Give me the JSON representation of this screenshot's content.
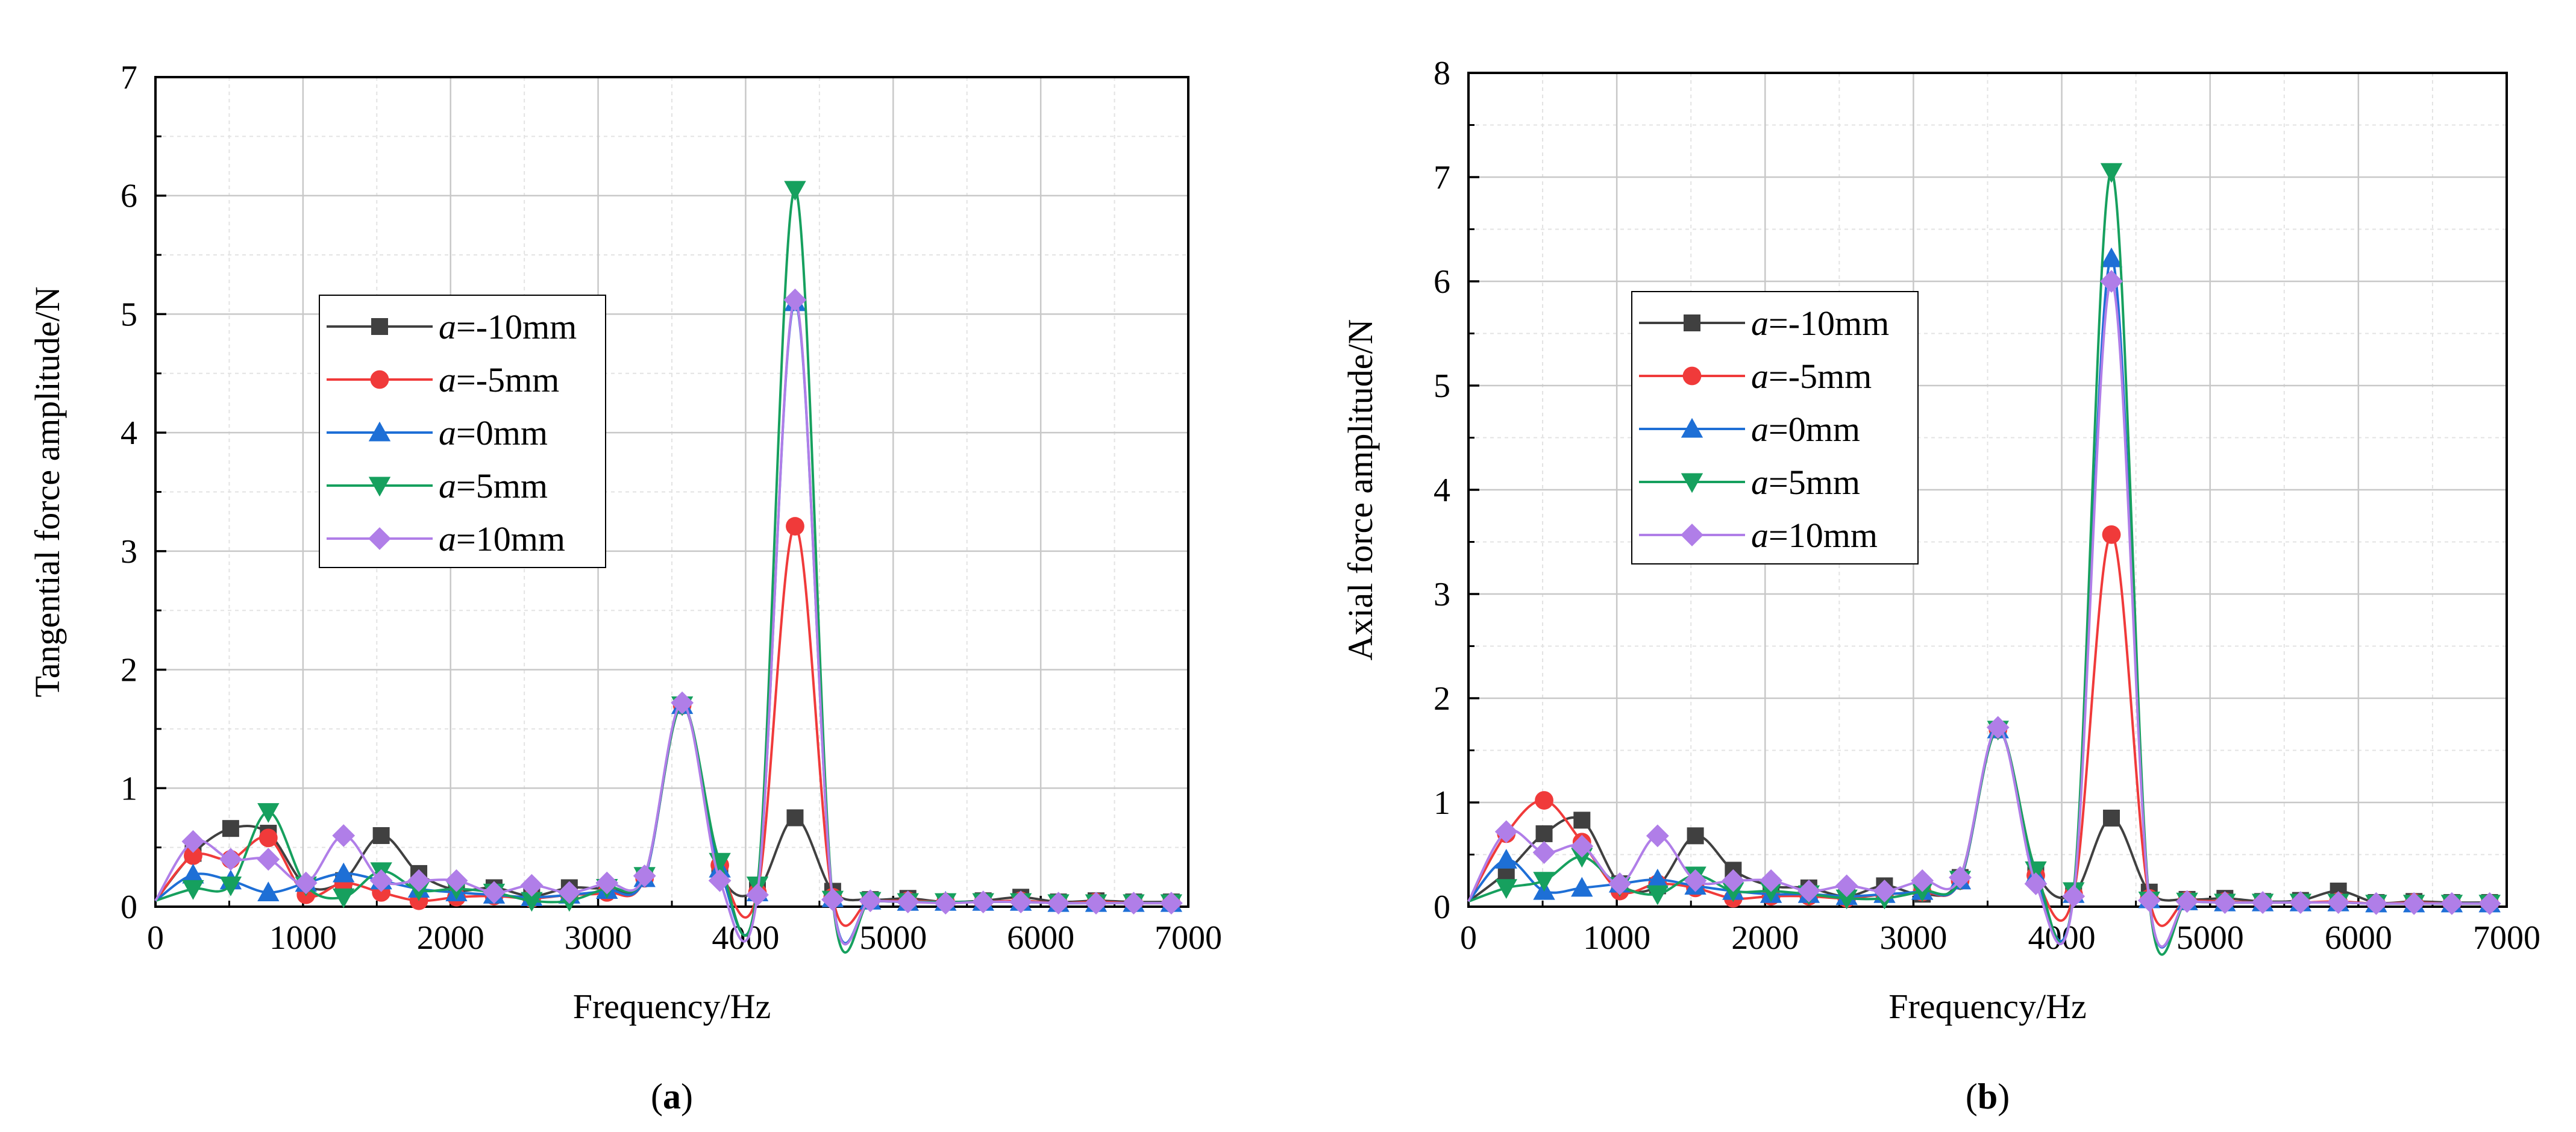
{
  "chart_data": [
    {
      "type": "line",
      "panel_label": "a",
      "xlabel": "Frequency/Hz",
      "ylabel": "Tangential force amplitude/N",
      "xlim": [
        0,
        7000
      ],
      "ylim": [
        0,
        7
      ],
      "xticks": [
        0,
        1000,
        2000,
        3000,
        4000,
        5000,
        6000,
        7000
      ],
      "yticks": [
        0,
        1,
        2,
        3,
        4,
        5,
        6,
        7
      ],
      "grid": true,
      "legend_position": "upper-left",
      "x": [
        0,
        255,
        510,
        765,
        1020,
        1275,
        1530,
        1785,
        2040,
        2295,
        2550,
        2805,
        3060,
        3315,
        3570,
        3825,
        4080,
        4335,
        4590,
        4845,
        5100,
        5355,
        5610,
        5865,
        6120,
        6375,
        6630,
        6885
      ],
      "series": [
        {
          "name_prefix": "a",
          "name_suffix": "=-10mm",
          "color": "#404040",
          "marker": "square",
          "values": [
            0.05,
            0.45,
            0.66,
            0.62,
            0.18,
            0.22,
            0.6,
            0.28,
            0.14,
            0.16,
            0.09,
            0.16,
            0.16,
            0.26,
            1.7,
            0.3,
            0.14,
            0.75,
            0.13,
            0.06,
            0.07,
            0.04,
            0.05,
            0.08,
            0.04,
            0.05,
            0.04,
            0.04
          ]
        },
        {
          "name_prefix": "a",
          "name_suffix": "=-5mm",
          "color": "#f03a3a",
          "marker": "circle",
          "values": [
            0.05,
            0.43,
            0.4,
            0.58,
            0.1,
            0.2,
            0.12,
            0.05,
            0.08,
            0.09,
            0.07,
            0.1,
            0.12,
            0.24,
            1.7,
            0.35,
            0.12,
            3.21,
            0.08,
            0.05,
            0.05,
            0.04,
            0.04,
            0.05,
            0.03,
            0.04,
            0.03,
            0.03
          ]
        },
        {
          "name_prefix": "a",
          "name_suffix": "=0mm",
          "color": "#1e6fd6",
          "marker": "triangle-up",
          "values": [
            0.05,
            0.27,
            0.22,
            0.12,
            0.2,
            0.28,
            0.22,
            0.15,
            0.12,
            0.1,
            0.08,
            0.1,
            0.14,
            0.24,
            1.7,
            0.32,
            0.12,
            5.1,
            0.07,
            0.05,
            0.04,
            0.04,
            0.04,
            0.04,
            0.03,
            0.03,
            0.03,
            0.03
          ]
        },
        {
          "name_prefix": "a",
          "name_suffix": "=5mm",
          "color": "#16a05e",
          "marker": "triangle-down",
          "values": [
            0.05,
            0.15,
            0.18,
            0.8,
            0.18,
            0.08,
            0.3,
            0.14,
            0.15,
            0.12,
            0.05,
            0.05,
            0.16,
            0.26,
            1.7,
            0.38,
            0.18,
            6.05,
            0.06,
            0.05,
            0.04,
            0.04,
            0.04,
            0.04,
            0.03,
            0.03,
            0.03,
            0.03
          ]
        },
        {
          "name_prefix": "a",
          "name_suffix": "=10mm",
          "color": "#b07ee8",
          "marker": "diamond",
          "values": [
            0.05,
            0.55,
            0.4,
            0.4,
            0.2,
            0.6,
            0.22,
            0.22,
            0.22,
            0.12,
            0.18,
            0.12,
            0.2,
            0.26,
            1.72,
            0.22,
            0.1,
            5.12,
            0.06,
            0.05,
            0.04,
            0.03,
            0.04,
            0.04,
            0.03,
            0.03,
            0.03,
            0.03
          ]
        }
      ]
    },
    {
      "type": "line",
      "panel_label": "b",
      "xlabel": "Frequency/Hz",
      "ylabel": "Axial force amplitude/N",
      "xlim": [
        0,
        7000
      ],
      "ylim": [
        0,
        8
      ],
      "xticks": [
        0,
        1000,
        2000,
        3000,
        4000,
        5000,
        6000,
        7000
      ],
      "yticks": [
        0,
        1,
        2,
        3,
        4,
        5,
        6,
        7,
        8
      ],
      "grid": true,
      "legend_position": "upper-left",
      "x": [
        0,
        255,
        510,
        765,
        1020,
        1275,
        1530,
        1785,
        2040,
        2295,
        2550,
        2805,
        3060,
        3315,
        3570,
        3825,
        4080,
        4335,
        4590,
        4845,
        5100,
        5355,
        5610,
        5865,
        6120,
        6375,
        6630,
        6885
      ],
      "series": [
        {
          "name_prefix": "a",
          "name_suffix": "=-10mm",
          "color": "#404040",
          "marker": "square",
          "values": [
            0.05,
            0.33,
            0.7,
            0.83,
            0.22,
            0.2,
            0.68,
            0.35,
            0.2,
            0.18,
            0.1,
            0.2,
            0.12,
            0.28,
            1.7,
            0.35,
            0.12,
            0.85,
            0.14,
            0.07,
            0.08,
            0.05,
            0.06,
            0.15,
            0.04,
            0.05,
            0.04,
            0.04
          ]
        },
        {
          "name_prefix": "a",
          "name_suffix": "=-5mm",
          "color": "#f03a3a",
          "marker": "circle",
          "values": [
            0.05,
            0.7,
            1.02,
            0.62,
            0.15,
            0.22,
            0.18,
            0.08,
            0.1,
            0.1,
            0.08,
            0.12,
            0.14,
            0.25,
            1.7,
            0.3,
            0.12,
            3.57,
            0.08,
            0.06,
            0.05,
            0.04,
            0.04,
            0.05,
            0.03,
            0.04,
            0.03,
            0.03
          ]
        },
        {
          "name_prefix": "a",
          "name_suffix": "=0mm",
          "color": "#1e6fd6",
          "marker": "triangle-up",
          "values": [
            0.05,
            0.45,
            0.15,
            0.18,
            0.22,
            0.26,
            0.2,
            0.15,
            0.12,
            0.12,
            0.1,
            0.12,
            0.15,
            0.25,
            1.7,
            0.3,
            0.12,
            6.22,
            0.07,
            0.05,
            0.04,
            0.04,
            0.04,
            0.04,
            0.03,
            0.03,
            0.03,
            0.03
          ]
        },
        {
          "name_prefix": "a",
          "name_suffix": "=5mm",
          "color": "#16a05e",
          "marker": "triangle-down",
          "values": [
            0.05,
            0.18,
            0.25,
            0.48,
            0.2,
            0.12,
            0.3,
            0.15,
            0.15,
            0.12,
            0.08,
            0.08,
            0.15,
            0.26,
            1.7,
            0.35,
            0.15,
            7.05,
            0.06,
            0.05,
            0.04,
            0.04,
            0.04,
            0.04,
            0.03,
            0.03,
            0.03,
            0.03
          ]
        },
        {
          "name_prefix": "a",
          "name_suffix": "=10mm",
          "color": "#b07ee8",
          "marker": "diamond",
          "values": [
            0.05,
            0.72,
            0.52,
            0.58,
            0.22,
            0.68,
            0.25,
            0.25,
            0.25,
            0.15,
            0.2,
            0.15,
            0.25,
            0.28,
            1.72,
            0.22,
            0.1,
            6.0,
            0.06,
            0.05,
            0.04,
            0.04,
            0.04,
            0.04,
            0.03,
            0.03,
            0.03,
            0.03
          ]
        }
      ]
    }
  ]
}
